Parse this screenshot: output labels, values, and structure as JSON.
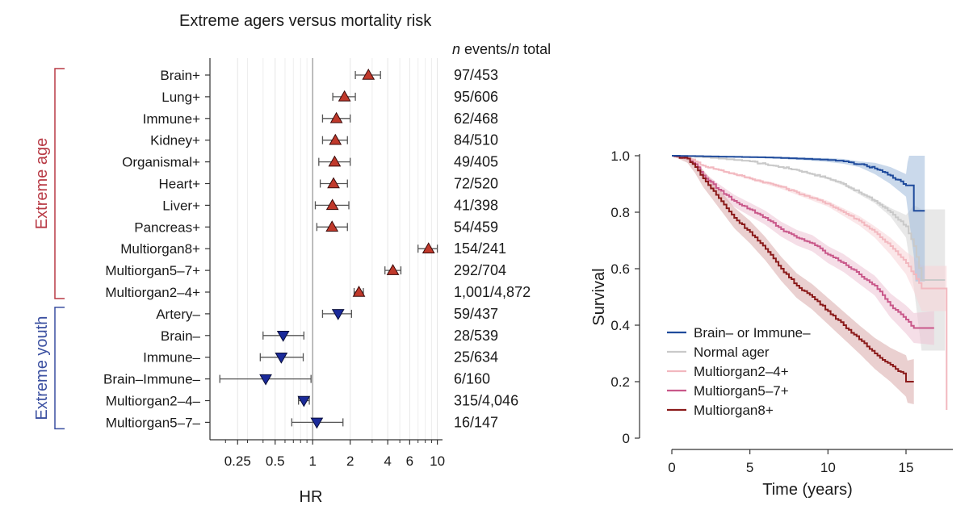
{
  "chart_data": [
    {
      "type": "scatter",
      "subtype": "forest-plot",
      "title": "Extreme agers versus mortality risk",
      "column_header_italic_n": "n",
      "column_header_events": " events/",
      "column_header_total": " total",
      "xlabel": "HR",
      "xscale": "log",
      "xlim": [
        0.15,
        11
      ],
      "xticks": [
        0.25,
        0.5,
        1,
        2,
        4,
        6,
        10
      ],
      "xtick_labels": [
        "0.25",
        "0.5",
        "1",
        "2",
        "4",
        "6",
        "10"
      ],
      "reference_line": 1,
      "groups": [
        {
          "label": "Extreme age",
          "color": "#b83a45",
          "first_row": 0,
          "last_row": 10
        },
        {
          "label": "Extreme youth",
          "color": "#3a4fa0",
          "first_row": 11,
          "last_row": 16
        }
      ],
      "rows": [
        {
          "label": "Brain+",
          "hr": 2.8,
          "lo": 2.2,
          "hi": 3.5,
          "counts": "97/453",
          "direction": "up"
        },
        {
          "label": "Lung+",
          "hr": 1.8,
          "lo": 1.45,
          "hi": 2.2,
          "counts": "95/606",
          "direction": "up"
        },
        {
          "label": "Immune+",
          "hr": 1.55,
          "lo": 1.2,
          "hi": 2.0,
          "counts": "62/468",
          "direction": "up"
        },
        {
          "label": "Kidney+",
          "hr": 1.52,
          "lo": 1.2,
          "hi": 1.9,
          "counts": "84/510",
          "direction": "up"
        },
        {
          "label": "Organismal+",
          "hr": 1.5,
          "lo": 1.12,
          "hi": 2.0,
          "counts": "49/405",
          "direction": "up"
        },
        {
          "label": "Heart+",
          "hr": 1.47,
          "lo": 1.15,
          "hi": 1.9,
          "counts": "72/520",
          "direction": "up"
        },
        {
          "label": "Liver+",
          "hr": 1.44,
          "lo": 1.05,
          "hi": 1.95,
          "counts": "41/398",
          "direction": "up"
        },
        {
          "label": "Pancreas+",
          "hr": 1.43,
          "lo": 1.08,
          "hi": 1.9,
          "counts": "54/459",
          "direction": "up"
        },
        {
          "label": "Multiorgan8+",
          "hr": 8.5,
          "lo": 7.0,
          "hi": 10.0,
          "counts": "154/241",
          "direction": "up"
        },
        {
          "label": "Multiorgan5–7+",
          "hr": 4.4,
          "lo": 3.8,
          "hi": 5.1,
          "counts": "292/704",
          "direction": "up"
        },
        {
          "label": "Multiorgan2–4+",
          "hr": 2.35,
          "lo": 2.15,
          "hi": 2.55,
          "counts": "1,001/4,872",
          "direction": "up"
        },
        {
          "label": "Artery–",
          "hr": 1.6,
          "lo": 1.2,
          "hi": 2.05,
          "counts": "59/437",
          "direction": "down"
        },
        {
          "label": "Brain–",
          "hr": 0.58,
          "lo": 0.4,
          "hi": 0.85,
          "counts": "28/539",
          "direction": "down"
        },
        {
          "label": "Immune–",
          "hr": 0.56,
          "lo": 0.38,
          "hi": 0.84,
          "counts": "25/634",
          "direction": "down"
        },
        {
          "label": "Brain–Immune–",
          "hr": 0.42,
          "lo": 0.18,
          "hi": 0.97,
          "counts": "6/160",
          "direction": "down"
        },
        {
          "label": "Multiorgan2–4–",
          "hr": 0.85,
          "lo": 0.77,
          "hi": 0.94,
          "counts": "315/4,046",
          "direction": "down"
        },
        {
          "label": "Multiorgan5–7–",
          "hr": 1.08,
          "lo": 0.68,
          "hi": 1.75,
          "counts": "16/147",
          "direction": "down"
        }
      ]
    },
    {
      "type": "line",
      "subtype": "kaplan-meier",
      "xlabel": "Time (years)",
      "ylabel": "Survival",
      "xlim": [
        0,
        18
      ],
      "ylim": [
        0,
        1.0
      ],
      "xticks": [
        0,
        5,
        10,
        15
      ],
      "xtick_labels": [
        "0",
        "5",
        "10",
        "15"
      ],
      "yticks": [
        0,
        0.2,
        0.4,
        0.6,
        0.8,
        1.0
      ],
      "ytick_labels": [
        "0",
        "0.2",
        "0.4",
        "0.6",
        "0.8",
        "1.0"
      ],
      "legend_position": "bottom-left",
      "series": [
        {
          "name": "Normal ager",
          "color": "#c9c9c9",
          "band_color": "#d6d6d6",
          "points": [
            [
              0,
              1.0
            ],
            [
              1,
              0.998
            ],
            [
              2,
              0.995
            ],
            [
              3,
              0.99
            ],
            [
              4,
              0.985
            ],
            [
              5,
              0.98
            ],
            [
              6,
              0.97
            ],
            [
              7,
              0.96
            ],
            [
              8,
              0.95
            ],
            [
              9,
              0.935
            ],
            [
              10,
              0.92
            ],
            [
              11,
              0.9
            ],
            [
              12,
              0.87
            ],
            [
              13,
              0.84
            ],
            [
              14,
              0.8
            ],
            [
              15,
              0.75
            ],
            [
              15.5,
              0.68
            ],
            [
              16,
              0.56
            ],
            [
              17,
              0.56
            ],
            [
              17.5,
              0.56
            ]
          ],
          "band_half_width": [
            [
              0,
              0.0
            ],
            [
              5,
              0.002
            ],
            [
              10,
              0.004
            ],
            [
              13,
              0.008
            ],
            [
              14,
              0.015
            ],
            [
              15,
              0.04
            ],
            [
              16,
              0.25
            ],
            [
              17.5,
              0.25
            ]
          ]
        },
        {
          "name": "Multiorgan2–4+",
          "color": "#f2b8bf",
          "band_color": "#f7d3d7",
          "points": [
            [
              0,
              1.0
            ],
            [
              1,
              0.995
            ],
            [
              1.5,
              0.98
            ],
            [
              2,
              0.965
            ],
            [
              3,
              0.95
            ],
            [
              4,
              0.935
            ],
            [
              5,
              0.92
            ],
            [
              6,
              0.905
            ],
            [
              7,
              0.89
            ],
            [
              8,
              0.87
            ],
            [
              9,
              0.85
            ],
            [
              10,
              0.83
            ],
            [
              11,
              0.8
            ],
            [
              12,
              0.77
            ],
            [
              13,
              0.73
            ],
            [
              14,
              0.68
            ],
            [
              15,
              0.62
            ],
            [
              15.5,
              0.58
            ],
            [
              16,
              0.53
            ],
            [
              17,
              0.53
            ],
            [
              17.6,
              0.53
            ],
            [
              17.6,
              0.1
            ]
          ],
          "band_half_width": [
            [
              0,
              0.0
            ],
            [
              5,
              0.005
            ],
            [
              10,
              0.01
            ],
            [
              13,
              0.02
            ],
            [
              15,
              0.04
            ],
            [
              16,
              0.08
            ],
            [
              17.6,
              0.08
            ]
          ]
        },
        {
          "name": "Multiorgan5–7+",
          "color": "#c9588a",
          "band_color": "#edc2d4",
          "points": [
            [
              0,
              1.0
            ],
            [
              1,
              0.99
            ],
            [
              1.5,
              0.97
            ],
            [
              2,
              0.93
            ],
            [
              3,
              0.88
            ],
            [
              4,
              0.84
            ],
            [
              5,
              0.81
            ],
            [
              6,
              0.78
            ],
            [
              7,
              0.74
            ],
            [
              8,
              0.71
            ],
            [
              9,
              0.69
            ],
            [
              10,
              0.65
            ],
            [
              11,
              0.62
            ],
            [
              12,
              0.58
            ],
            [
              13,
              0.54
            ],
            [
              14,
              0.47
            ],
            [
              15,
              0.42
            ],
            [
              15.5,
              0.39
            ],
            [
              16.8,
              0.39
            ]
          ],
          "band_half_width": [
            [
              0,
              0.0
            ],
            [
              3,
              0.02
            ],
            [
              6,
              0.025
            ],
            [
              10,
              0.03
            ],
            [
              13,
              0.035
            ],
            [
              15,
              0.05
            ],
            [
              16.8,
              0.06
            ]
          ]
        },
        {
          "name": "Multiorgan8+",
          "color": "#8b1a1a",
          "band_color": "#d8a9a9",
          "points": [
            [
              0,
              1.0
            ],
            [
              1,
              0.99
            ],
            [
              1.5,
              0.96
            ],
            [
              2,
              0.92
            ],
            [
              3,
              0.85
            ],
            [
              4,
              0.78
            ],
            [
              5,
              0.73
            ],
            [
              6,
              0.67
            ],
            [
              7,
              0.6
            ],
            [
              8,
              0.54
            ],
            [
              9,
              0.5
            ],
            [
              10,
              0.45
            ],
            [
              11,
              0.4
            ],
            [
              12,
              0.35
            ],
            [
              13,
              0.3
            ],
            [
              14,
              0.26
            ],
            [
              15,
              0.22
            ],
            [
              15,
              0.2
            ],
            [
              15.5,
              0.2
            ]
          ],
          "band_half_width": [
            [
              0,
              0.0
            ],
            [
              2,
              0.03
            ],
            [
              5,
              0.04
            ],
            [
              9,
              0.045
            ],
            [
              12,
              0.05
            ],
            [
              14,
              0.06
            ],
            [
              15.5,
              0.08
            ]
          ]
        },
        {
          "name": "Brain– or Immune–",
          "color": "#1f4b9c",
          "band_color": "#9fb9db",
          "points": [
            [
              0,
              1.0
            ],
            [
              2,
              0.998
            ],
            [
              4,
              0.996
            ],
            [
              6,
              0.994
            ],
            [
              8,
              0.99
            ],
            [
              10,
              0.985
            ],
            [
              11,
              0.98
            ],
            [
              12,
              0.97
            ],
            [
              13,
              0.955
            ],
            [
              14,
              0.93
            ],
            [
              15,
              0.895
            ],
            [
              15.5,
              0.895
            ],
            [
              15.5,
              0.805
            ],
            [
              16.2,
              0.805
            ]
          ],
          "band_half_width": [
            [
              0,
              0.0
            ],
            [
              8,
              0.004
            ],
            [
              12,
              0.01
            ],
            [
              13,
              0.02
            ],
            [
              14,
              0.03
            ],
            [
              15,
              0.04
            ],
            [
              15.5,
              0.25
            ],
            [
              16.2,
              0.25
            ]
          ]
        }
      ],
      "legend_order": [
        "Brain– or Immune–",
        "Normal ager",
        "Multiorgan2–4+",
        "Multiorgan5–7+",
        "Multiorgan8+"
      ]
    }
  ]
}
